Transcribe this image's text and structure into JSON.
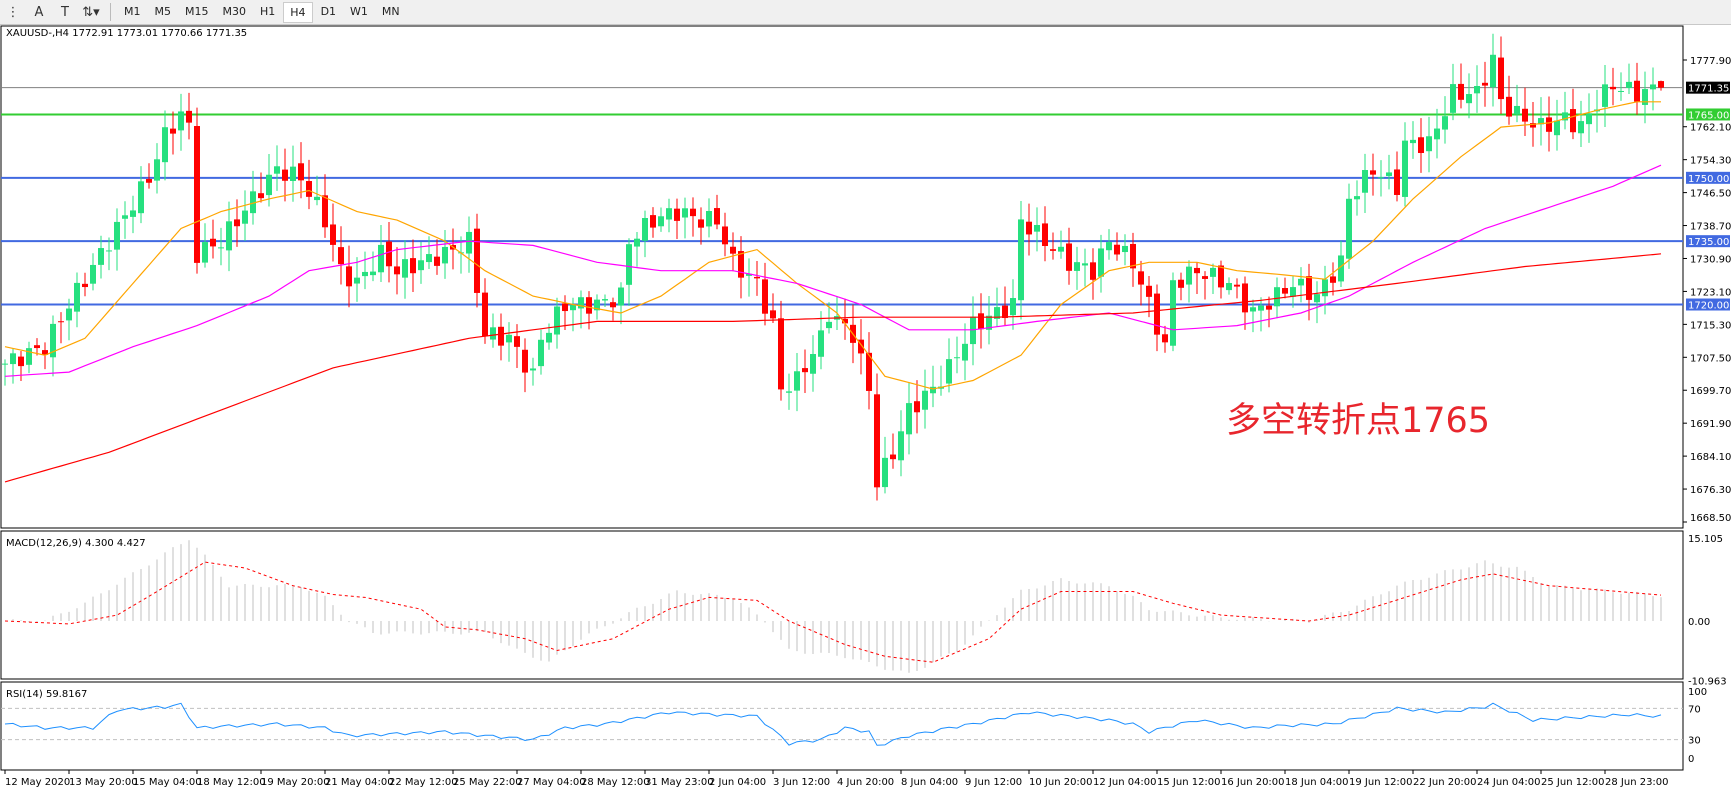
{
  "toolbar": {
    "icons": [
      "fibonacci-fan-icon",
      "text-icon",
      "text-label-icon",
      "arrows-icon"
    ],
    "timeframes": [
      "M1",
      "M5",
      "M15",
      "M30",
      "H1",
      "H4",
      "D1",
      "W1",
      "MN"
    ],
    "active_timeframe": "H4"
  },
  "chart": {
    "symbol_header": "XAUUSD-,H4  1772.91 1773.01 1770.66 1771.35",
    "annotation": "多空转折点1765",
    "annotation_color": "#e8262d"
  },
  "chart_data": [
    {
      "type": "candlestick",
      "symbol": "XAUUSD-",
      "timeframe": "H4",
      "last_ohlc": {
        "open": 1772.91,
        "high": 1773.01,
        "low": 1770.66,
        "close": 1771.35
      },
      "ylim": [
        1668.5,
        1784
      ],
      "y_ticks": [
        "1777.90",
        "1762.10",
        "1754.30",
        "1746.50",
        "1738.70",
        "1730.90",
        "1723.10",
        "1715.30",
        "1707.50",
        "1699.70",
        "1691.90",
        "1684.10",
        "1676.30",
        "1668.50"
      ],
      "x_ticks": [
        "12 May 2020",
        "13 May 20:00",
        "15 May 04:00",
        "18 May 12:00",
        "19 May 20:00",
        "21 May 04:00",
        "22 May 12:00",
        "25 May 22:00",
        "27 May 04:00",
        "28 May 12:00",
        "31 May 23:00",
        "2 Jun 04:00",
        "3 Jun 12:00",
        "4 Jun 20:00",
        "8 Jun 04:00",
        "9 Jun 12:00",
        "10 Jun 20:00",
        "12 Jun 04:00",
        "15 Jun 12:00",
        "16 Jun 20:00",
        "18 Jun 04:00",
        "19 Jun 12:00",
        "22 Jun 20:00",
        "24 Jun 04:00",
        "25 Jun 12:00",
        "28 Jun 23:00"
      ],
      "bar_count": 208,
      "close_path": [
        [
          0,
          1706
        ],
        [
          5,
          1710
        ],
        [
          8,
          1720
        ],
        [
          12,
          1732
        ],
        [
          18,
          1750
        ],
        [
          20,
          1760
        ],
        [
          22,
          1765
        ],
        [
          23,
          1762
        ],
        [
          24,
          1732
        ],
        [
          27,
          1735
        ],
        [
          31,
          1745
        ],
        [
          34,
          1752
        ],
        [
          37,
          1750
        ],
        [
          40,
          1740
        ],
        [
          42,
          1728
        ],
        [
          44,
          1725
        ],
        [
          47,
          1732
        ],
        [
          49,
          1728
        ],
        [
          52,
          1730
        ],
        [
          55,
          1732
        ],
        [
          58,
          1735
        ],
        [
          60,
          1713
        ],
        [
          63,
          1712
        ],
        [
          66,
          1703
        ],
        [
          67,
          1712
        ],
        [
          70,
          1720
        ],
        [
          74,
          1720
        ],
        [
          77,
          1722
        ],
        [
          78,
          1735
        ],
        [
          81,
          1740
        ],
        [
          84,
          1742
        ],
        [
          87,
          1740
        ],
        [
          89,
          1740
        ],
        [
          91,
          1730
        ],
        [
          94,
          1725
        ],
        [
          96,
          1715
        ],
        [
          97,
          1700
        ],
        [
          99,
          1702
        ],
        [
          102,
          1712
        ],
        [
          103,
          1718
        ],
        [
          106,
          1713
        ],
        [
          108,
          1700
        ],
        [
          109,
          1678
        ],
        [
          111,
          1685
        ],
        [
          113,
          1695
        ],
        [
          116,
          1700
        ],
        [
          118,
          1705
        ],
        [
          121,
          1715
        ],
        [
          124,
          1718
        ],
        [
          126,
          1720
        ],
        [
          127,
          1740
        ],
        [
          130,
          1735
        ],
        [
          133,
          1730
        ],
        [
          136,
          1728
        ],
        [
          138,
          1735
        ],
        [
          141,
          1730
        ],
        [
          143,
          1720
        ],
        [
          145,
          1710
        ],
        [
          146,
          1725
        ],
        [
          149,
          1728
        ],
        [
          153,
          1725
        ],
        [
          156,
          1718
        ],
        [
          159,
          1722
        ],
        [
          161,
          1725
        ],
        [
          164,
          1722
        ],
        [
          167,
          1730
        ],
        [
          168,
          1745
        ],
        [
          171,
          1752
        ],
        [
          174,
          1748
        ],
        [
          175,
          1758
        ],
        [
          178,
          1758
        ],
        [
          179,
          1762
        ],
        [
          181,
          1770
        ],
        [
          184,
          1770
        ],
        [
          186,
          1778
        ],
        [
          187,
          1768
        ],
        [
          189,
          1765
        ],
        [
          192,
          1762
        ],
        [
          195,
          1764
        ],
        [
          197,
          1762
        ],
        [
          199,
          1768
        ],
        [
          201,
          1772
        ],
        [
          204,
          1770
        ],
        [
          207,
          1771.35
        ]
      ],
      "moving_averages": [
        {
          "color": "#ffa500",
          "path": [
            [
              0,
              1710
            ],
            [
              5,
              1708
            ],
            [
              10,
              1712
            ],
            [
              16,
              1725
            ],
            [
              22,
              1738
            ],
            [
              27,
              1742
            ],
            [
              33,
              1745
            ],
            [
              38,
              1747
            ],
            [
              44,
              1742
            ],
            [
              49,
              1740
            ],
            [
              55,
              1735
            ],
            [
              60,
              1728
            ],
            [
              66,
              1722
            ],
            [
              71,
              1720
            ],
            [
              77,
              1718
            ],
            [
              82,
              1722
            ],
            [
              88,
              1730
            ],
            [
              94,
              1733
            ],
            [
              99,
              1725
            ],
            [
              104,
              1718
            ],
            [
              110,
              1703
            ],
            [
              116,
              1700
            ],
            [
              121,
              1702
            ],
            [
              127,
              1708
            ],
            [
              132,
              1720
            ],
            [
              138,
              1728
            ],
            [
              143,
              1730
            ],
            [
              149,
              1730
            ],
            [
              154,
              1728
            ],
            [
              160,
              1727
            ],
            [
              165,
              1726
            ],
            [
              171,
              1735
            ],
            [
              176,
              1745
            ],
            [
              182,
              1755
            ],
            [
              187,
              1762
            ],
            [
              193,
              1763
            ],
            [
              199,
              1766
            ],
            [
              204,
              1768
            ],
            [
              207,
              1768
            ]
          ]
        },
        {
          "color": "#ff00ff",
          "path": [
            [
              0,
              1703
            ],
            [
              8,
              1704
            ],
            [
              16,
              1710
            ],
            [
              24,
              1715
            ],
            [
              33,
              1722
            ],
            [
              38,
              1728
            ],
            [
              44,
              1730
            ],
            [
              49,
              1733
            ],
            [
              58,
              1735
            ],
            [
              66,
              1734
            ],
            [
              74,
              1730
            ],
            [
              82,
              1728
            ],
            [
              91,
              1728
            ],
            [
              99,
              1725
            ],
            [
              107,
              1720
            ],
            [
              113,
              1714
            ],
            [
              121,
              1714
            ],
            [
              129,
              1716
            ],
            [
              138,
              1718
            ],
            [
              146,
              1714
            ],
            [
              154,
              1715
            ],
            [
              162,
              1718
            ],
            [
              168,
              1722
            ],
            [
              176,
              1730
            ],
            [
              185,
              1738
            ],
            [
              193,
              1743
            ],
            [
              201,
              1748
            ],
            [
              207,
              1753
            ]
          ]
        },
        {
          "color": "#ff0000",
          "path": [
            [
              0,
              1678
            ],
            [
              13,
              1685
            ],
            [
              27,
              1695
            ],
            [
              41,
              1705
            ],
            [
              58,
              1712
            ],
            [
              74,
              1716
            ],
            [
              91,
              1716
            ],
            [
              107,
              1717
            ],
            [
              124,
              1717
            ],
            [
              141,
              1718
            ],
            [
              157,
              1721
            ],
            [
              174,
              1725
            ],
            [
              190,
              1729
            ],
            [
              207,
              1732
            ]
          ]
        }
      ],
      "horizontal_levels": [
        {
          "price": "1771.35",
          "color": "#808080",
          "label_bg": "#000000"
        },
        {
          "price": "1765.00",
          "color": "#32cd32",
          "label_bg": "#32cd32"
        },
        {
          "price": "1750.00",
          "color": "#4169e1",
          "label_bg": "#4169e1"
        },
        {
          "price": "1735.00",
          "color": "#4169e1",
          "label_bg": "#4169e1"
        },
        {
          "price": "1720.00",
          "color": "#4169e1",
          "label_bg": "#4169e1"
        }
      ],
      "bull_color": "#26e07f",
      "bear_color": "#ff0000"
    },
    {
      "type": "macd",
      "label": "MACD(12,26,9) 4.300 4.427",
      "ylim": [
        -10.963,
        15.105
      ],
      "y_ticks": [
        "15.105",
        "0.00",
        "-10.963"
      ],
      "histogram_path": [
        [
          0,
          0
        ],
        [
          5,
          0
        ],
        [
          10,
          3
        ],
        [
          16,
          8
        ],
        [
          23,
          14
        ],
        [
          25,
          11
        ],
        [
          28,
          6
        ],
        [
          37,
          6
        ],
        [
          40,
          4
        ],
        [
          43,
          0
        ],
        [
          46,
          -2
        ],
        [
          60,
          -2
        ],
        [
          64,
          -5
        ],
        [
          68,
          -7
        ],
        [
          72,
          -3
        ],
        [
          79,
          2
        ],
        [
          84,
          5
        ],
        [
          91,
          4
        ],
        [
          95,
          0
        ],
        [
          98,
          -5
        ],
        [
          105,
          -6
        ],
        [
          110,
          -8
        ],
        [
          113,
          -9
        ],
        [
          119,
          -5
        ],
        [
          123,
          0
        ],
        [
          127,
          5
        ],
        [
          132,
          7
        ],
        [
          138,
          6
        ],
        [
          141,
          4
        ],
        [
          143,
          2
        ],
        [
          152,
          0.5
        ],
        [
          163,
          0
        ],
        [
          168,
          2
        ],
        [
          174,
          6
        ],
        [
          179,
          8
        ],
        [
          185,
          10
        ],
        [
          189,
          9
        ],
        [
          193,
          6
        ],
        [
          207,
          4.3
        ]
      ],
      "signal_path": [
        [
          0,
          0
        ],
        [
          8,
          -0.5
        ],
        [
          14,
          1
        ],
        [
          19,
          5
        ],
        [
          25,
          10
        ],
        [
          30,
          9
        ],
        [
          36,
          6
        ],
        [
          41,
          4.5
        ],
        [
          45,
          4
        ],
        [
          52,
          2
        ],
        [
          55,
          -1
        ],
        [
          59,
          -1.5
        ],
        [
          65,
          -3
        ],
        [
          69,
          -5
        ],
        [
          76,
          -3
        ],
        [
          83,
          2
        ],
        [
          88,
          4
        ],
        [
          94,
          3.5
        ],
        [
          98,
          0
        ],
        [
          105,
          -4
        ],
        [
          110,
          -6
        ],
        [
          116,
          -7
        ],
        [
          123,
          -3
        ],
        [
          127,
          2
        ],
        [
          132,
          5
        ],
        [
          141,
          5
        ],
        [
          146,
          3
        ],
        [
          152,
          1
        ],
        [
          163,
          0
        ],
        [
          168,
          1
        ],
        [
          175,
          4
        ],
        [
          182,
          7
        ],
        [
          186,
          8
        ],
        [
          193,
          6
        ],
        [
          207,
          4.4
        ]
      ],
      "histogram_color": "#c0c0c0",
      "signal_color": "#ff0000"
    },
    {
      "type": "rsi",
      "label": "RSI(14) 59.8167",
      "ylim": [
        0,
        100
      ],
      "y_ticks": [
        "100",
        "70",
        "30",
        "0"
      ],
      "levels": [
        70,
        30
      ],
      "path": [
        [
          0,
          50
        ],
        [
          5,
          45
        ],
        [
          11,
          45
        ],
        [
          14,
          68
        ],
        [
          20,
          72
        ],
        [
          22,
          75
        ],
        [
          24,
          45
        ],
        [
          27,
          47
        ],
        [
          34,
          50
        ],
        [
          40,
          45
        ],
        [
          43,
          35
        ],
        [
          50,
          38
        ],
        [
          55,
          40
        ],
        [
          60,
          35
        ],
        [
          66,
          30
        ],
        [
          70,
          45
        ],
        [
          75,
          50
        ],
        [
          83,
          65
        ],
        [
          89,
          62
        ],
        [
          94,
          60
        ],
        [
          98,
          25
        ],
        [
          102,
          30
        ],
        [
          105,
          45
        ],
        [
          108,
          40
        ],
        [
          109,
          22
        ],
        [
          113,
          35
        ],
        [
          118,
          45
        ],
        [
          121,
          50
        ],
        [
          128,
          65
        ],
        [
          133,
          60
        ],
        [
          138,
          55
        ],
        [
          141,
          50
        ],
        [
          143,
          40
        ],
        [
          146,
          48
        ],
        [
          149,
          55
        ],
        [
          156,
          45
        ],
        [
          160,
          48
        ],
        [
          166,
          50
        ],
        [
          171,
          62
        ],
        [
          174,
          70
        ],
        [
          180,
          65
        ],
        [
          185,
          72
        ],
        [
          186,
          75
        ],
        [
          191,
          55
        ],
        [
          196,
          58
        ],
        [
          203,
          62
        ],
        [
          207,
          59.8
        ]
      ],
      "color": "#1e90ff"
    }
  ]
}
